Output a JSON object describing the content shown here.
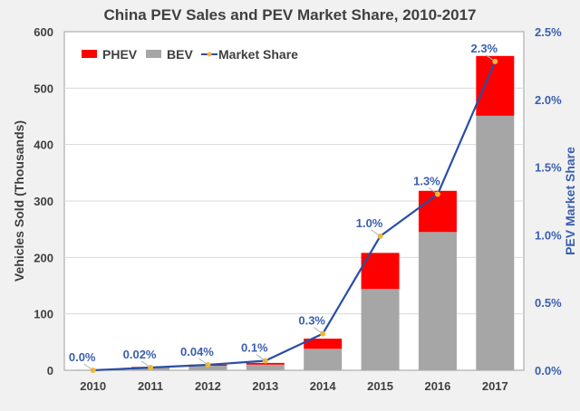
{
  "chart_data": {
    "type": "bar",
    "title": "China PEV Sales and PEV Market Share, 2010-2017",
    "xlabel": "",
    "ylabel": "Vehicles Sold (Thousands)",
    "y2label": "PEV Market Share",
    "ylim": [
      0,
      600
    ],
    "y2lim": [
      0,
      2.5
    ],
    "yticks": [
      "0",
      "100",
      "200",
      "300",
      "400",
      "500",
      "600"
    ],
    "y2ticks": [
      "0.0%",
      "0.5%",
      "1.0%",
      "1.5%",
      "2.0%",
      "2.5%"
    ],
    "categories": [
      "2010",
      "2011",
      "2012",
      "2013",
      "2014",
      "2015",
      "2016",
      "2017"
    ],
    "grid": true,
    "legend_position": "top-left",
    "colors": {
      "PHEV": "#ff0000",
      "BEV": "#a6a6a6",
      "Market Share": "#2a4ea5",
      "marker": "#f5b82e"
    },
    "series": [
      {
        "name": "BEV",
        "type": "stacked-bar",
        "values": [
          1,
          5,
          8,
          10,
          38,
          144,
          245,
          451
        ]
      },
      {
        "name": "PHEV",
        "type": "stacked-bar",
        "values": [
          0,
          1,
          2,
          3,
          18,
          64,
          73,
          106
        ]
      },
      {
        "name": "Market Share",
        "type": "line",
        "axis": "right",
        "values": [
          0.0,
          0.02,
          0.04,
          0.07,
          0.27,
          0.99,
          1.3,
          2.28
        ],
        "labels": [
          "0.0%",
          "0.02%",
          "0.04%",
          "0.1%",
          "0.3%",
          "1.0%",
          "1.3%",
          "2.3%"
        ]
      }
    ]
  }
}
